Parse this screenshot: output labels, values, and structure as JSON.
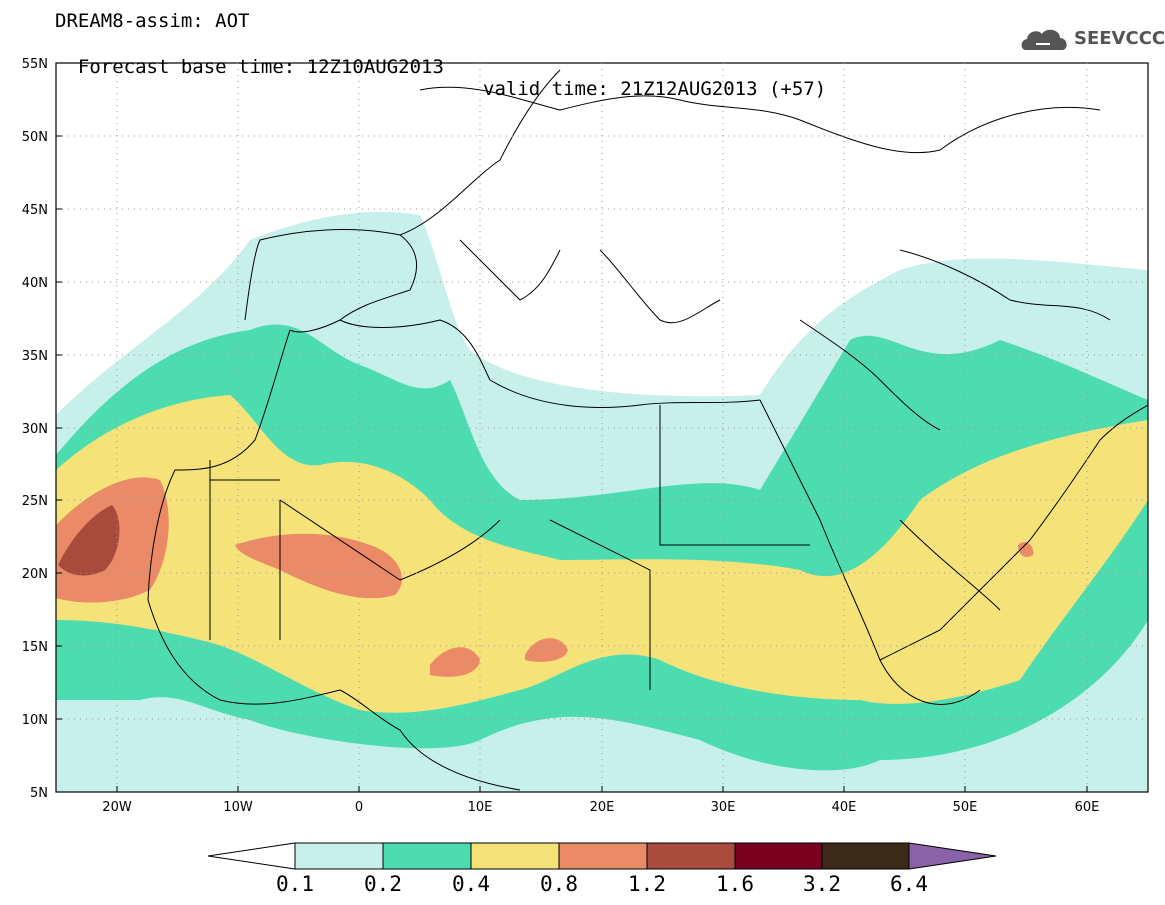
{
  "title": {
    "line1": "DREAM8-assim: AOT",
    "line2_base": "Forecast base time: 12Z10AUG2013",
    "line2_valid": "valid time: 21Z12AUG2013 (+57)"
  },
  "logo": {
    "text": "SEEVCCC",
    "icon": "cloud-icon"
  },
  "axes": {
    "lat_labels": [
      "55N",
      "50N",
      "45N",
      "40N",
      "35N",
      "30N",
      "25N",
      "20N",
      "15N",
      "10N",
      "5N"
    ],
    "lon_labels": [
      "20W",
      "10W",
      "0",
      "10E",
      "20E",
      "30E",
      "40E",
      "50E",
      "60E"
    ]
  },
  "colorbar": {
    "labels": [
      "0.1",
      "0.2",
      "0.4",
      "0.8",
      "1.2",
      "1.6",
      "3.2",
      "6.4"
    ],
    "colors": [
      "#ffffff",
      "#c8f0ea",
      "#4ddcb0",
      "#f5e37a",
      "#ea8a66",
      "#a84a3c",
      "#7a0020",
      "#3b2a1a",
      "#8a62a8"
    ]
  }
}
